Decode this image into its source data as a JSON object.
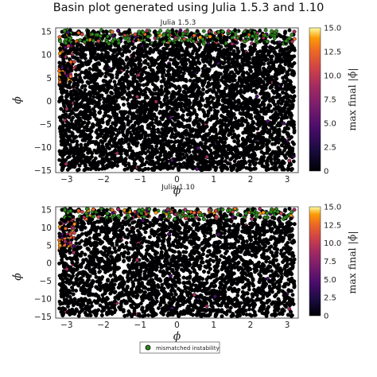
{
  "title": "Basin plot generated using Julia 1.5.3 and 1.10",
  "colors": {
    "mismatch_fill": "#2e8b1f",
    "mismatch_edge": "#000000",
    "colormap": "inferno"
  },
  "legend": {
    "label": "mismatched instability",
    "marker": "circle-icon",
    "placement": "bottom-center"
  },
  "chart_data": [
    {
      "type": "scatter",
      "title": "Julia 1.5.3",
      "xlabel": "ϕ",
      "ylabel": "ϕ̇",
      "xlim": [
        -3.3,
        3.3
      ],
      "ylim": [
        -15.5,
        15.8
      ],
      "xticks": [
        -3,
        -2,
        -1,
        0,
        1,
        2,
        3
      ],
      "yticks": [
        -15,
        -10,
        -5,
        0,
        5,
        10,
        15
      ],
      "grid": true,
      "colorbar": {
        "label": "max final |ϕ̇|",
        "range": [
          0,
          15
        ],
        "ticks": [
          "0",
          "2.5",
          "5.0",
          "7.5",
          "10.0",
          "12.5",
          "15.0"
        ]
      },
      "series": [
        {
          "name": "mismatched instability",
          "description_points": "≈6000 uniformly sampled initial conditions; nearly all colored near 0 (black), higher values and green mismatch markers concentrated along top band ϕ̇ > 12"
        }
      ]
    },
    {
      "type": "scatter",
      "title": "Julia 1.10",
      "xlabel": "ϕ",
      "ylabel": "ϕ̇",
      "xlim": [
        -3.3,
        3.3
      ],
      "ylim": [
        -15.5,
        15.8
      ],
      "xticks": [
        -3,
        -2,
        -1,
        0,
        1,
        2,
        3
      ],
      "yticks": [
        -15,
        -10,
        -5,
        0,
        5,
        10,
        15
      ],
      "grid": true,
      "colorbar": {
        "label": "max final |ϕ̇|",
        "range": [
          0,
          15
        ],
        "ticks": [
          "0",
          "2.5",
          "5.0",
          "7.5",
          "10.0",
          "12.5",
          "15.0"
        ]
      },
      "series": [
        {
          "name": "mismatched instability",
          "description_points": "same sample set; more orange/red markers near the top edge ϕ̇ > 12 and around ϕ ≈ -3"
        }
      ]
    }
  ]
}
